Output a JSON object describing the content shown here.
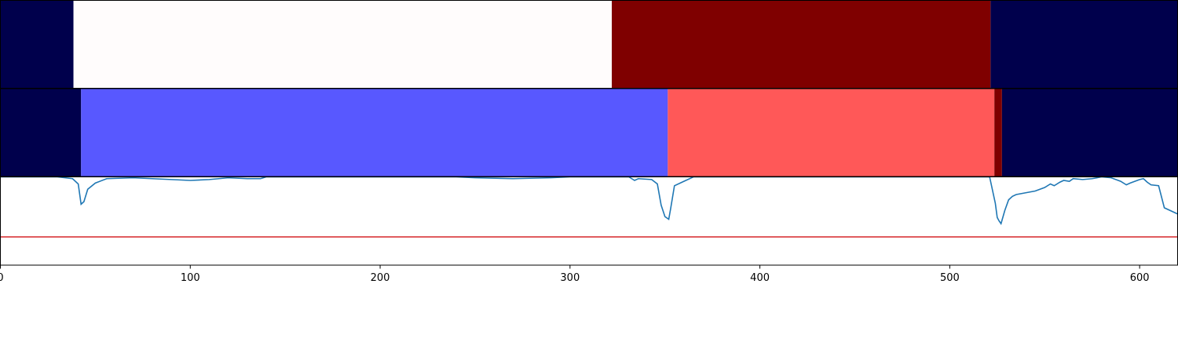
{
  "chart_data": {
    "type": "heatmap",
    "xlim": [
      0,
      620
    ],
    "x_ticks": [
      0,
      100,
      200,
      300,
      400,
      500,
      600
    ],
    "x_tick_labels": [
      "0",
      "100",
      "200",
      "300",
      "400",
      "500",
      "600"
    ],
    "grid": false,
    "legend": "none",
    "panels": [
      {
        "name": "segmentation-strip-1",
        "segments": [
          {
            "start": 0,
            "end": 38.5,
            "color": "#00004c"
          },
          {
            "start": 38.5,
            "end": 322,
            "color": "#fffcfc"
          },
          {
            "start": 322,
            "end": 521.5,
            "color": "#7f0000"
          },
          {
            "start": 521.5,
            "end": 620,
            "color": "#00004c"
          }
        ]
      },
      {
        "name": "segmentation-strip-2",
        "segments": [
          {
            "start": 0,
            "end": 42.5,
            "color": "#00004c"
          },
          {
            "start": 42.5,
            "end": 351.5,
            "color": "#5858ff"
          },
          {
            "start": 351.5,
            "end": 523.5,
            "color": "#ff5858"
          },
          {
            "start": 523.5,
            "end": 527.5,
            "color": "#7f0000"
          },
          {
            "start": 527.5,
            "end": 620,
            "color": "#00004c"
          }
        ]
      },
      {
        "name": "signal-panel",
        "type": "line",
        "ylim": [
          -1.0,
          0.0
        ],
        "threshold": -0.68,
        "threshold_color": "#d62728",
        "series_color": "#1f77b4",
        "series_x": [
          0,
          30,
          38,
          41,
          42.5,
          44,
          46,
          50,
          56,
          70,
          80,
          90,
          100,
          110,
          120,
          130,
          135,
          137,
          140,
          200,
          240,
          250,
          270,
          290,
          300,
          320,
          331,
          334,
          336,
          343,
          346,
          348,
          350,
          352,
          353,
          355,
          360,
          365,
          372,
          380,
          420,
          440,
          460,
          480,
          500,
          515,
          518,
          521,
          522,
          524,
          525,
          526,
          527,
          529,
          531,
          533,
          535,
          540,
          545,
          550,
          553,
          555,
          558,
          560,
          563,
          565,
          570,
          575,
          580,
          585,
          590,
          593,
          595,
          600,
          602,
          604,
          606,
          610,
          613,
          620
        ],
        "series_y": [
          0.0,
          0.0,
          -0.02,
          -0.08,
          -0.31,
          -0.28,
          -0.14,
          -0.07,
          -0.02,
          -0.01,
          -0.02,
          -0.03,
          -0.04,
          -0.03,
          -0.01,
          -0.02,
          -0.02,
          -0.02,
          0.0,
          0.0,
          0.0,
          -0.01,
          -0.02,
          -0.01,
          0.0,
          0.0,
          0.0,
          -0.04,
          -0.02,
          -0.03,
          -0.08,
          -0.32,
          -0.45,
          -0.48,
          -0.36,
          -0.1,
          -0.05,
          0.0,
          0.0,
          0.0,
          0.0,
          0.0,
          0.0,
          0.0,
          0.0,
          0.0,
          0.0,
          0.0,
          -0.1,
          -0.3,
          -0.46,
          -0.5,
          -0.53,
          -0.38,
          -0.26,
          -0.22,
          -0.2,
          -0.18,
          -0.16,
          -0.12,
          -0.08,
          -0.1,
          -0.06,
          -0.04,
          -0.05,
          -0.02,
          -0.03,
          -0.02,
          0.0,
          -0.01,
          -0.05,
          -0.09,
          -0.07,
          -0.03,
          -0.02,
          -0.06,
          -0.09,
          -0.1,
          -0.35,
          -0.42
        ]
      }
    ]
  }
}
